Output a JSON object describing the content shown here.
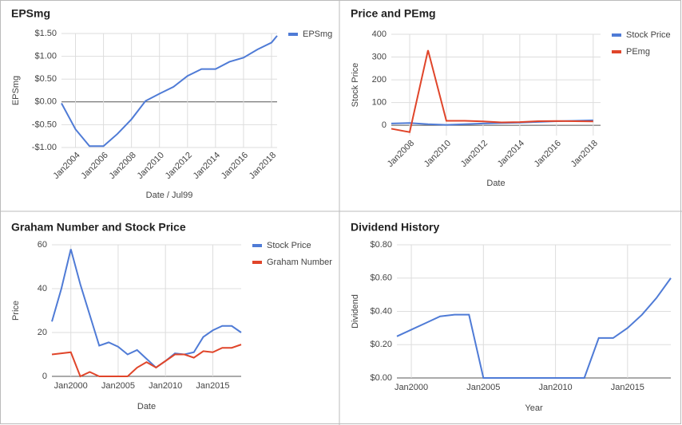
{
  "chart_data": [
    {
      "type": "line",
      "title": "EPSmg",
      "x_label": "Date / Jul99",
      "y_label": "EPSmg",
      "legend": "right",
      "x": [
        2003,
        2004,
        2005,
        2006,
        2007,
        2008,
        2009,
        2010,
        2011,
        2012,
        2013,
        2014,
        2015,
        2016,
        2017,
        2018,
        2018.4
      ],
      "series": [
        {
          "name": "EPSmg",
          "color": "#4f7bd6",
          "values": [
            -0.03,
            -0.6,
            -0.97,
            -0.97,
            -0.7,
            -0.38,
            0.02,
            0.18,
            0.33,
            0.57,
            0.72,
            0.72,
            0.88,
            0.97,
            1.15,
            1.3,
            1.45
          ]
        }
      ],
      "xlim": [
        2003,
        2018.4
      ],
      "xticks": [
        {
          "value": 2004,
          "label": "Jan2004"
        },
        {
          "value": 2006,
          "label": "Jan2006"
        },
        {
          "value": 2008,
          "label": "Jan2008"
        },
        {
          "value": 2010,
          "label": "Jan2010"
        },
        {
          "value": 2012,
          "label": "Jan2012"
        },
        {
          "value": 2014,
          "label": "Jan2014"
        },
        {
          "value": 2016,
          "label": "Jan2016"
        },
        {
          "value": 2018,
          "label": "Jan2018"
        }
      ],
      "ylim": [
        -1,
        1.5
      ],
      "yticks": [
        {
          "value": -1,
          "label": "-$1.00"
        },
        {
          "value": -0.5,
          "label": "-$0.50"
        },
        {
          "value": 0,
          "label": "$0.00"
        },
        {
          "value": 0.5,
          "label": "$0.50"
        },
        {
          "value": 1,
          "label": "$1.00"
        },
        {
          "value": 1.5,
          "label": "$1.50"
        }
      ],
      "grid": true
    },
    {
      "type": "line",
      "title": "Price and PEmg",
      "x_label": "Date",
      "y_label": "Stock Price",
      "legend": "right",
      "x": [
        2007,
        2008,
        2009,
        2010,
        2011,
        2012,
        2013,
        2014,
        2015,
        2016,
        2017,
        2018
      ],
      "series": [
        {
          "name": "Stock Price",
          "color": "#4f7bd6",
          "values": [
            8,
            10,
            5,
            2,
            5,
            8,
            10,
            12,
            15,
            18,
            20,
            22
          ]
        },
        {
          "name": "PEmg",
          "color": "#e0452a",
          "values": [
            -15,
            -30,
            330,
            20,
            20,
            17,
            13,
            14,
            18,
            19,
            18,
            17
          ]
        }
      ],
      "xlim": [
        2007,
        2018.4
      ],
      "xticks": [
        {
          "value": 2008,
          "label": "Jan2008"
        },
        {
          "value": 2010,
          "label": "Jan2010"
        },
        {
          "value": 2012,
          "label": "Jan2012"
        },
        {
          "value": 2014,
          "label": "Jan2014"
        },
        {
          "value": 2016,
          "label": "Jan2016"
        },
        {
          "value": 2018,
          "label": "Jan2018"
        }
      ],
      "ylim": [
        -45,
        400
      ],
      "yticks": [
        0,
        100,
        200,
        300,
        400
      ],
      "grid": true
    },
    {
      "type": "line",
      "title": "Graham Number and Stock Price",
      "x_label": "Date",
      "y_label": "Price",
      "legend": "right",
      "x": [
        1998,
        1999,
        2000,
        2001,
        2002,
        2003,
        2004,
        2005,
        2006,
        2007,
        2008,
        2009,
        2010,
        2011,
        2012,
        2013,
        2014,
        2015,
        2016,
        2017,
        2018
      ],
      "series": [
        {
          "name": "Stock Price",
          "color": "#4f7bd6",
          "values": [
            25,
            40,
            58,
            42,
            28,
            14,
            15.5,
            13.5,
            10,
            12,
            8,
            4,
            7,
            10.5,
            10,
            11,
            18,
            21,
            23,
            23,
            20
          ]
        },
        {
          "name": "Graham Number",
          "color": "#e0452a",
          "values": [
            10,
            10.5,
            11,
            0,
            2,
            0,
            0,
            0,
            0,
            4,
            6.5,
            4,
            7,
            10,
            10,
            8.5,
            11.5,
            11,
            13,
            13,
            14.5
          ]
        }
      ],
      "xlim": [
        1998,
        2018
      ],
      "xticks": [
        {
          "value": 2000,
          "label": "Jan2000"
        },
        {
          "value": 2005,
          "label": "Jan2005"
        },
        {
          "value": 2010,
          "label": "Jan2010"
        },
        {
          "value": 2015,
          "label": "Jan2015"
        }
      ],
      "ylim": [
        0,
        60
      ],
      "yticks": [
        0,
        20,
        40,
        60
      ],
      "grid": true
    },
    {
      "type": "line",
      "title": "Dividend History",
      "x_label": "Year",
      "y_label": "Dividend",
      "x": [
        1999,
        2000,
        2001,
        2002,
        2003,
        2004,
        2005,
        2006,
        2007,
        2008,
        2009,
        2010,
        2011,
        2012,
        2013,
        2014,
        2015,
        2016,
        2017,
        2018
      ],
      "values": [
        0.25,
        0.29,
        0.33,
        0.37,
        0.38,
        0.38,
        0,
        0,
        0,
        0,
        0,
        0,
        0,
        0,
        0.24,
        0.24,
        0.3,
        0.38,
        0.48,
        0.6
      ],
      "color": "#4f7bd6",
      "xlim": [
        1999,
        2018
      ],
      "xticks": [
        {
          "value": 2000,
          "label": "Jan2000"
        },
        {
          "value": 2005,
          "label": "Jan2005"
        },
        {
          "value": 2010,
          "label": "Jan2010"
        },
        {
          "value": 2015,
          "label": "Jan2015"
        }
      ],
      "ylim": [
        0,
        0.8
      ],
      "yticks": [
        {
          "value": 0,
          "label": "$0.00"
        },
        {
          "value": 0.2,
          "label": "$0.20"
        },
        {
          "value": 0.4,
          "label": "$0.40"
        },
        {
          "value": 0.6,
          "label": "$0.60"
        },
        {
          "value": 0.8,
          "label": "$0.80"
        }
      ],
      "grid": true
    }
  ]
}
